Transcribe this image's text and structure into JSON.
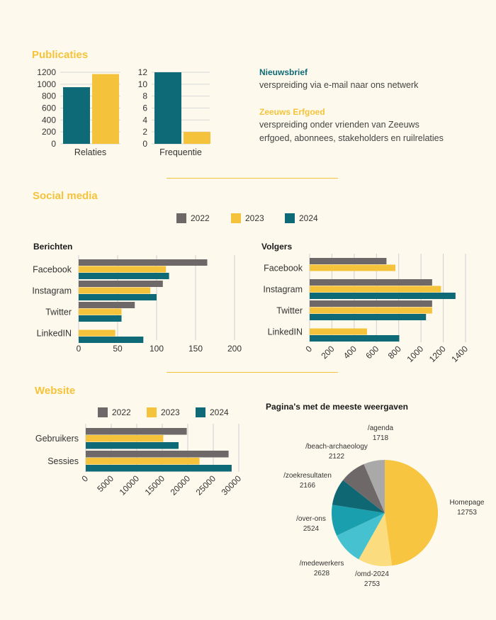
{
  "colors": {
    "c2022": "#6e6868",
    "c2023": "#f5c33b",
    "c2024": "#0e6a77",
    "grid": "#cfcfcf",
    "heading": "#f5c33b",
    "teal": "#0e6a77"
  },
  "sections": {
    "publicaties": "Publicaties",
    "social": "Social media",
    "website": "Website"
  },
  "publicaties_info": {
    "nieuwsbrief_title": "Nieuwsbrief",
    "nieuwsbrief_text": "verspreiding via e-mail naar ons netwerk",
    "erfgoed_title": "Zeeuws Erfgoed",
    "erfgoed_line1": "verspreiding onder vrienden van Zeeuws",
    "erfgoed_line2": "erfgoed, abonnees, stakeholders en ruilrelaties"
  },
  "legend": {
    "y2022": "2022",
    "y2023": "2023",
    "y2024": "2024"
  },
  "titles": {
    "berichten": "Berichten",
    "volgers": "Volgers",
    "pie": "Pagina's met de meeste weergaven"
  },
  "chart_data": [
    {
      "id": "relaties",
      "type": "bar",
      "categories": [
        "Relaties"
      ],
      "series": [
        {
          "name": "Nieuwsbrief",
          "values": [
            950
          ]
        },
        {
          "name": "Zeeuws Erfgoed",
          "values": [
            1170
          ]
        }
      ],
      "yticks": [
        "0",
        "200",
        "400",
        "600",
        "800",
        "1000",
        "1200"
      ],
      "ylim": [
        0,
        1200
      ],
      "xlabel": "Relaties"
    },
    {
      "id": "frequentie",
      "type": "bar",
      "categories": [
        "Frequentie"
      ],
      "series": [
        {
          "name": "Nieuwsbrief",
          "values": [
            12
          ]
        },
        {
          "name": "Zeeuws Erfgoed",
          "values": [
            2
          ]
        }
      ],
      "yticks": [
        "0",
        "2",
        "4",
        "6",
        "8",
        "10",
        "12"
      ],
      "ylim": [
        0,
        12
      ],
      "xlabel": "Frequentie"
    },
    {
      "id": "berichten",
      "type": "bar",
      "orientation": "horizontal",
      "title": "Berichten",
      "categories": [
        "Facebook",
        "Instagram",
        "Twitter",
        "LinkedIN"
      ],
      "series": [
        {
          "name": "2022",
          "values": [
            165,
            108,
            72,
            0
          ]
        },
        {
          "name": "2023",
          "values": [
            112,
            92,
            55,
            47
          ]
        },
        {
          "name": "2024",
          "values": [
            116,
            100,
            55,
            83
          ]
        }
      ],
      "xticks": [
        "0",
        "50",
        "100",
        "150",
        "200"
      ],
      "xlim": [
        0,
        200
      ]
    },
    {
      "id": "volgers",
      "type": "bar",
      "orientation": "horizontal",
      "title": "Volgers",
      "categories": [
        "Facebook",
        "Instagram",
        "Twitter",
        "LinkedIN"
      ],
      "series": [
        {
          "name": "2022",
          "values": [
            690,
            1100,
            1100,
            0
          ]
        },
        {
          "name": "2023",
          "values": [
            770,
            1180,
            1100,
            515
          ]
        },
        {
          "name": "2024",
          "values": [
            0,
            1310,
            1045,
            805
          ]
        }
      ],
      "xticks": [
        "0",
        "200",
        "400",
        "600",
        "800",
        "1000",
        "1200",
        "1400"
      ],
      "xlim": [
        0,
        1400
      ]
    },
    {
      "id": "website",
      "type": "bar",
      "orientation": "horizontal",
      "categories": [
        "Gebruikers",
        "Sessies"
      ],
      "series": [
        {
          "name": "2022",
          "values": [
            19800,
            28000
          ]
        },
        {
          "name": "2023",
          "values": [
            15200,
            22300
          ]
        },
        {
          "name": "2024",
          "values": [
            18200,
            28600
          ]
        }
      ],
      "xticks": [
        "0",
        "5000",
        "10000",
        "15000",
        "20000",
        "25000",
        "30000"
      ],
      "xlim": [
        0,
        30000
      ]
    },
    {
      "id": "pie",
      "type": "pie",
      "title": "Pagina's met de meeste weergaven",
      "slices": [
        {
          "label": "Homepage",
          "value": 12753,
          "display": "12753",
          "color": "#f7c53f"
        },
        {
          "label": "/omd-2024",
          "value": 2753,
          "display": "2753",
          "color": "#fbdc7e"
        },
        {
          "label": "/medewerkers",
          "value": 2628,
          "display": "2628",
          "color": "#45c1d0"
        },
        {
          "label": "/over-ons",
          "value": 2524,
          "display": "2524",
          "color": "#1a9fae"
        },
        {
          "label": "/zoekresultaten",
          "value": 2166,
          "display": "2166",
          "color": "#0f6774"
        },
        {
          "label": "/beach-archaeology",
          "value": 2122,
          "display": "2122",
          "color": "#6e6868"
        },
        {
          "label": "/agenda",
          "value": 1718,
          "display": "1718",
          "color": "#a9a9a9"
        }
      ]
    }
  ]
}
